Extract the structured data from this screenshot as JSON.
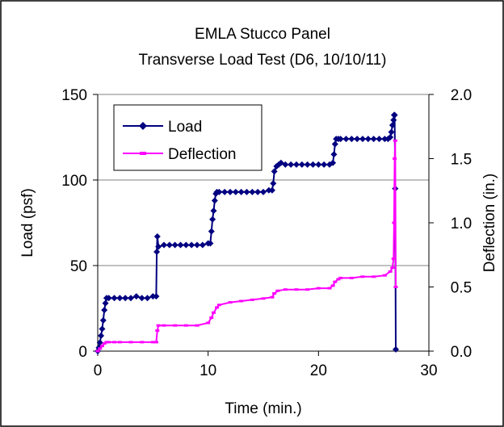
{
  "chart_data": {
    "type": "line",
    "title": "EMLA Stucco Panel",
    "subtitle": "Transverse Load Test (D6, 10/10/11)",
    "xlabel": "Time (min.)",
    "ylabel": "Load (psf)",
    "y2label": "Deflection (in.)",
    "xlim": [
      0,
      30
    ],
    "ylim": [
      0,
      150
    ],
    "y2lim": [
      0,
      2.0
    ],
    "x_ticks": [
      "0",
      "10",
      "20",
      "30"
    ],
    "y_ticks": [
      "0",
      "50",
      "100",
      "150"
    ],
    "y2_ticks": [
      "0.0",
      "0.5",
      "1.0",
      "1.5",
      "2.0"
    ],
    "grid": "horizontal",
    "legend_position": "top-left",
    "series": [
      {
        "name": "Load",
        "axis": "left",
        "color": "#000080",
        "marker": "diamond",
        "x": [
          0,
          0.1,
          0.2,
          0.3,
          0.4,
          0.5,
          0.6,
          0.7,
          0.8,
          1.0,
          1.5,
          2.0,
          2.5,
          3.0,
          3.5,
          4.0,
          4.5,
          5.0,
          5.3,
          5.35,
          5.4,
          5.5,
          6.0,
          6.5,
          7.0,
          7.5,
          8.0,
          8.5,
          9.0,
          9.5,
          10.0,
          10.2,
          10.3,
          10.4,
          10.5,
          10.6,
          10.7,
          10.8,
          11.0,
          11.5,
          12.0,
          12.5,
          13.0,
          13.5,
          14.0,
          14.5,
          15.0,
          15.5,
          15.8,
          15.9,
          16.0,
          16.2,
          16.4,
          16.6,
          17.0,
          17.5,
          18.0,
          18.5,
          19.0,
          19.5,
          20.0,
          20.5,
          21.0,
          21.3,
          21.4,
          21.5,
          21.6,
          21.8,
          22.0,
          22.5,
          23.0,
          23.5,
          24.0,
          24.5,
          25.0,
          25.5,
          26.0,
          26.3,
          26.5,
          26.6,
          26.7,
          26.8,
          26.85,
          26.9,
          26.95,
          27.0
        ],
        "y": [
          0,
          2,
          5,
          9,
          13,
          18,
          24,
          28,
          31,
          31,
          31,
          31,
          31,
          31,
          32,
          31,
          31,
          32,
          32,
          58,
          67,
          61,
          62,
          62,
          62,
          62,
          62,
          62,
          62,
          62,
          63,
          63,
          70,
          77,
          82,
          88,
          92,
          93,
          93,
          93,
          93,
          93,
          93,
          93,
          93,
          93,
          93,
          94,
          94,
          98,
          105,
          108,
          109,
          110,
          109,
          109,
          109,
          109,
          109,
          109,
          109,
          109,
          109,
          110,
          115,
          121,
          124,
          124,
          124,
          124,
          124,
          124,
          124,
          124,
          124,
          124,
          124,
          124,
          125,
          128,
          132,
          135,
          138,
          138,
          95,
          1
        ]
      },
      {
        "name": "Deflection",
        "axis": "right",
        "color": "#FF00FF",
        "marker": "dash",
        "x": [
          0,
          0.2,
          0.4,
          0.6,
          0.8,
          1.0,
          1.5,
          2.0,
          3.0,
          4.0,
          5.0,
          5.3,
          5.4,
          5.5,
          6.0,
          7.0,
          8.0,
          9.0,
          10.0,
          10.3,
          10.5,
          10.8,
          11.0,
          12.0,
          13.0,
          14.0,
          15.0,
          15.8,
          16.0,
          16.3,
          17.0,
          18.0,
          19.0,
          20.0,
          21.0,
          21.3,
          21.5,
          21.8,
          22.0,
          23.0,
          24.0,
          25.0,
          26.0,
          26.5,
          26.7,
          26.8,
          26.85,
          26.9,
          26.95,
          27.0
        ],
        "y": [
          0,
          0.02,
          0.04,
          0.06,
          0.07,
          0.07,
          0.07,
          0.07,
          0.07,
          0.07,
          0.07,
          0.07,
          0.16,
          0.2,
          0.2,
          0.2,
          0.2,
          0.2,
          0.22,
          0.26,
          0.3,
          0.34,
          0.36,
          0.38,
          0.39,
          0.4,
          0.41,
          0.42,
          0.45,
          0.47,
          0.48,
          0.48,
          0.48,
          0.49,
          0.49,
          0.51,
          0.54,
          0.56,
          0.57,
          0.57,
          0.58,
          0.58,
          0.59,
          0.62,
          0.65,
          0.72,
          1.0,
          1.5,
          1.64,
          0.5
        ]
      }
    ]
  }
}
